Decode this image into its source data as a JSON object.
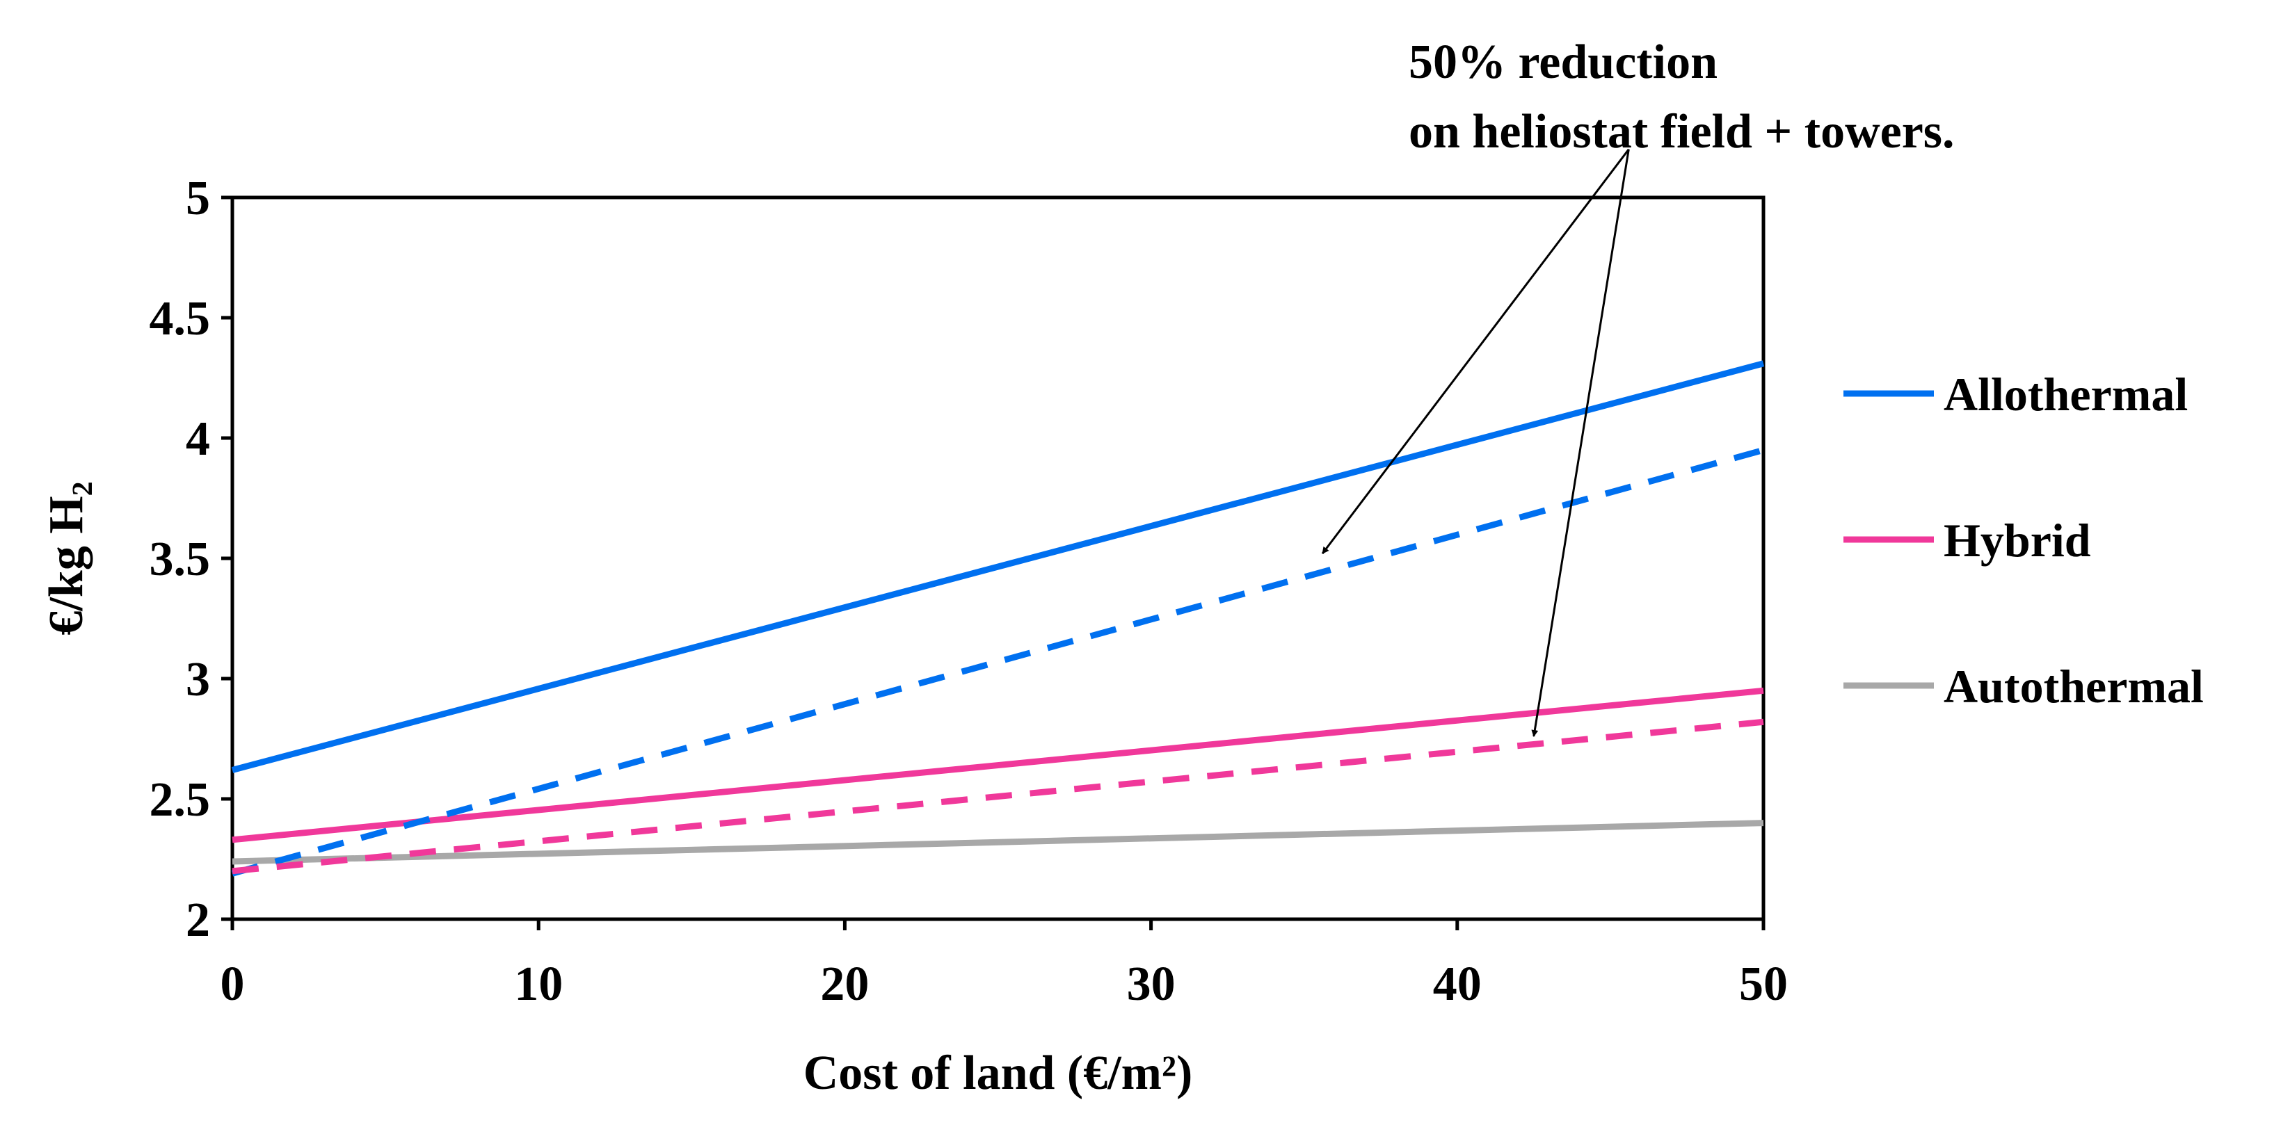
{
  "chart_data": {
    "type": "line",
    "title": "",
    "xlabel": "Cost of land (€/m²)",
    "ylabel": "€/kg H₂",
    "xlim": [
      0,
      50
    ],
    "ylim": [
      2,
      5
    ],
    "x_ticks": [
      "0",
      "10",
      "20",
      "30",
      "40",
      "50"
    ],
    "y_ticks": [
      "2",
      "2.5",
      "3",
      "3.5",
      "4",
      "4.5",
      "5"
    ],
    "grid": false,
    "legend_position": "right",
    "series": [
      {
        "name": "Allothermal",
        "style": "solid",
        "color": "#0070f0",
        "x": [
          0,
          50
        ],
        "y": [
          2.62,
          4.31
        ]
      },
      {
        "name": "Hybrid",
        "style": "solid",
        "color": "#f0389a",
        "x": [
          0,
          50
        ],
        "y": [
          2.33,
          2.95
        ]
      },
      {
        "name": "Autothermal",
        "style": "solid",
        "color": "#a8a8a8",
        "x": [
          0,
          50
        ],
        "y": [
          2.24,
          2.4
        ]
      },
      {
        "name": "Allothermal (50% reduction)",
        "style": "dashed",
        "color": "#0070f0",
        "x": [
          0,
          50
        ],
        "y": [
          2.19,
          3.95
        ]
      },
      {
        "name": "Hybrid (50% reduction)",
        "style": "dashed",
        "color": "#f0389a",
        "x": [
          0,
          50
        ],
        "y": [
          2.2,
          2.82
        ]
      }
    ],
    "legend": [
      "Allothermal",
      "Hybrid",
      "Autothermal"
    ],
    "annotation": {
      "lines": [
        "50% reduction",
        "on heliostat field + towers."
      ],
      "arrow_targets": [
        {
          "series": "Allothermal (50% reduction)",
          "x": 35.6,
          "y": 3.52
        },
        {
          "series": "Hybrid (50% reduction)",
          "x": 42.5,
          "y": 2.76
        }
      ],
      "arrow_origin": {
        "x": 45.6,
        "y": 5.2
      }
    }
  }
}
